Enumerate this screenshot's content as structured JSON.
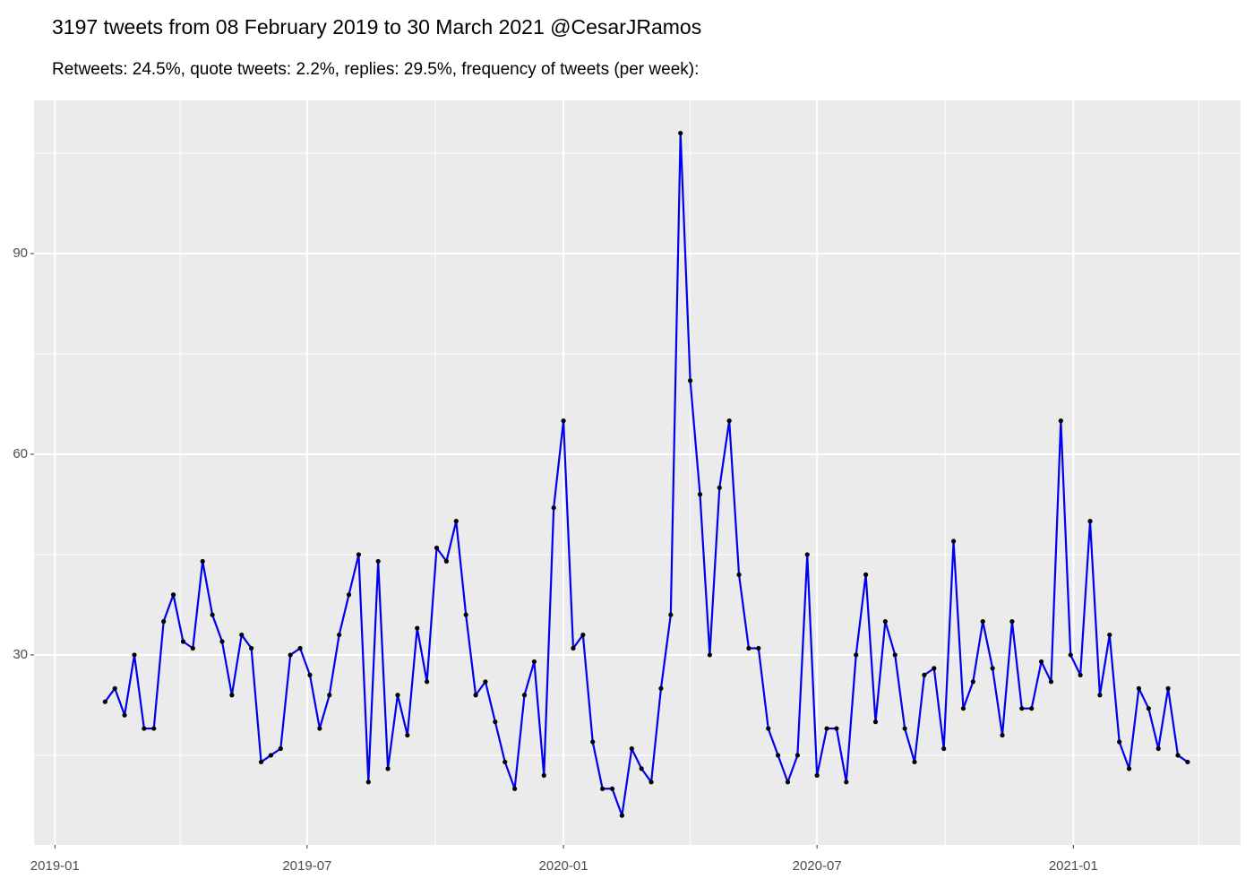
{
  "chart_data": {
    "type": "line",
    "title": "3197 tweets from 08 February 2019 to 30 March 2021 @CesarJRamos",
    "subtitle": "Retweets: 24.5%, quote tweets: 2.2%, replies: 29.5%, frequency of tweets (per week):",
    "x": [
      "2019-02-06",
      "2019-02-13",
      "2019-02-20",
      "2019-02-27",
      "2019-03-06",
      "2019-03-13",
      "2019-03-20",
      "2019-03-27",
      "2019-04-03",
      "2019-04-10",
      "2019-04-17",
      "2019-04-24",
      "2019-05-01",
      "2019-05-08",
      "2019-05-15",
      "2019-05-22",
      "2019-05-29",
      "2019-06-05",
      "2019-06-12",
      "2019-06-19",
      "2019-06-26",
      "2019-07-03",
      "2019-07-10",
      "2019-07-17",
      "2019-07-24",
      "2019-07-31",
      "2019-08-07",
      "2019-08-14",
      "2019-08-21",
      "2019-08-28",
      "2019-09-04",
      "2019-09-11",
      "2019-09-18",
      "2019-09-25",
      "2019-10-02",
      "2019-10-09",
      "2019-10-16",
      "2019-10-23",
      "2019-10-30",
      "2019-11-06",
      "2019-11-13",
      "2019-11-20",
      "2019-11-27",
      "2019-12-04",
      "2019-12-11",
      "2019-12-18",
      "2019-12-25",
      "2020-01-01",
      "2020-01-08",
      "2020-01-15",
      "2020-01-22",
      "2020-01-29",
      "2020-02-05",
      "2020-02-12",
      "2020-02-19",
      "2020-02-26",
      "2020-03-04",
      "2020-03-11",
      "2020-03-18",
      "2020-03-25",
      "2020-04-01",
      "2020-04-08",
      "2020-04-15",
      "2020-04-22",
      "2020-04-29",
      "2020-05-06",
      "2020-05-13",
      "2020-05-20",
      "2020-05-27",
      "2020-06-03",
      "2020-06-10",
      "2020-06-17",
      "2020-06-24",
      "2020-07-01",
      "2020-07-08",
      "2020-07-15",
      "2020-07-22",
      "2020-07-29",
      "2020-08-05",
      "2020-08-12",
      "2020-08-19",
      "2020-08-26",
      "2020-09-02",
      "2020-09-09",
      "2020-09-16",
      "2020-09-23",
      "2020-09-30",
      "2020-10-07",
      "2020-10-14",
      "2020-10-21",
      "2020-10-28",
      "2020-11-04",
      "2020-11-11",
      "2020-11-18",
      "2020-11-25",
      "2020-12-02",
      "2020-12-09",
      "2020-12-16",
      "2020-12-23",
      "2020-12-30",
      "2021-01-06",
      "2021-01-13",
      "2021-01-20",
      "2021-01-27",
      "2021-02-03",
      "2021-02-10",
      "2021-02-17",
      "2021-02-24",
      "2021-03-03",
      "2021-03-10",
      "2021-03-17",
      "2021-03-24"
    ],
    "series": [
      {
        "color": "#0000ee",
        "point_color": "#000000",
        "values": [
          23,
          25,
          21,
          30,
          19,
          19,
          35,
          39,
          32,
          31,
          44,
          36,
          32,
          24,
          33,
          31,
          14,
          15,
          16,
          30,
          31,
          27,
          19,
          24,
          33,
          39,
          45,
          11,
          44,
          13,
          24,
          18,
          34,
          26,
          46,
          44,
          50,
          36,
          24,
          26,
          20,
          14,
          10,
          24,
          29,
          12,
          52,
          65,
          31,
          33,
          17,
          10,
          10,
          6,
          16,
          13,
          11,
          25,
          36,
          108,
          71,
          54,
          30,
          55,
          65,
          42,
          31,
          31,
          19,
          15,
          11,
          15,
          45,
          12,
          19,
          19,
          11,
          30,
          42,
          20,
          35,
          30,
          19,
          14,
          27,
          28,
          16,
          47,
          22,
          26,
          35,
          28,
          18,
          35,
          22,
          22,
          29,
          26,
          65,
          30,
          27,
          50,
          24,
          33,
          17,
          13,
          25,
          22,
          16,
          25,
          15,
          14
        ]
      }
    ],
    "xlim": [
      "2018-12-17",
      "2021-05-01"
    ],
    "xticks": [
      "2019-01",
      "2019-07",
      "2020-01",
      "2020-07",
      "2021-01"
    ],
    "xminor": [
      "2019-04",
      "2019-10",
      "2020-04",
      "2020-10",
      "2021-04"
    ],
    "ylim": [
      1.6,
      112.9
    ],
    "yticks": [
      30,
      60,
      90
    ],
    "yminor": [
      15,
      45,
      75,
      105
    ],
    "grid": true
  }
}
